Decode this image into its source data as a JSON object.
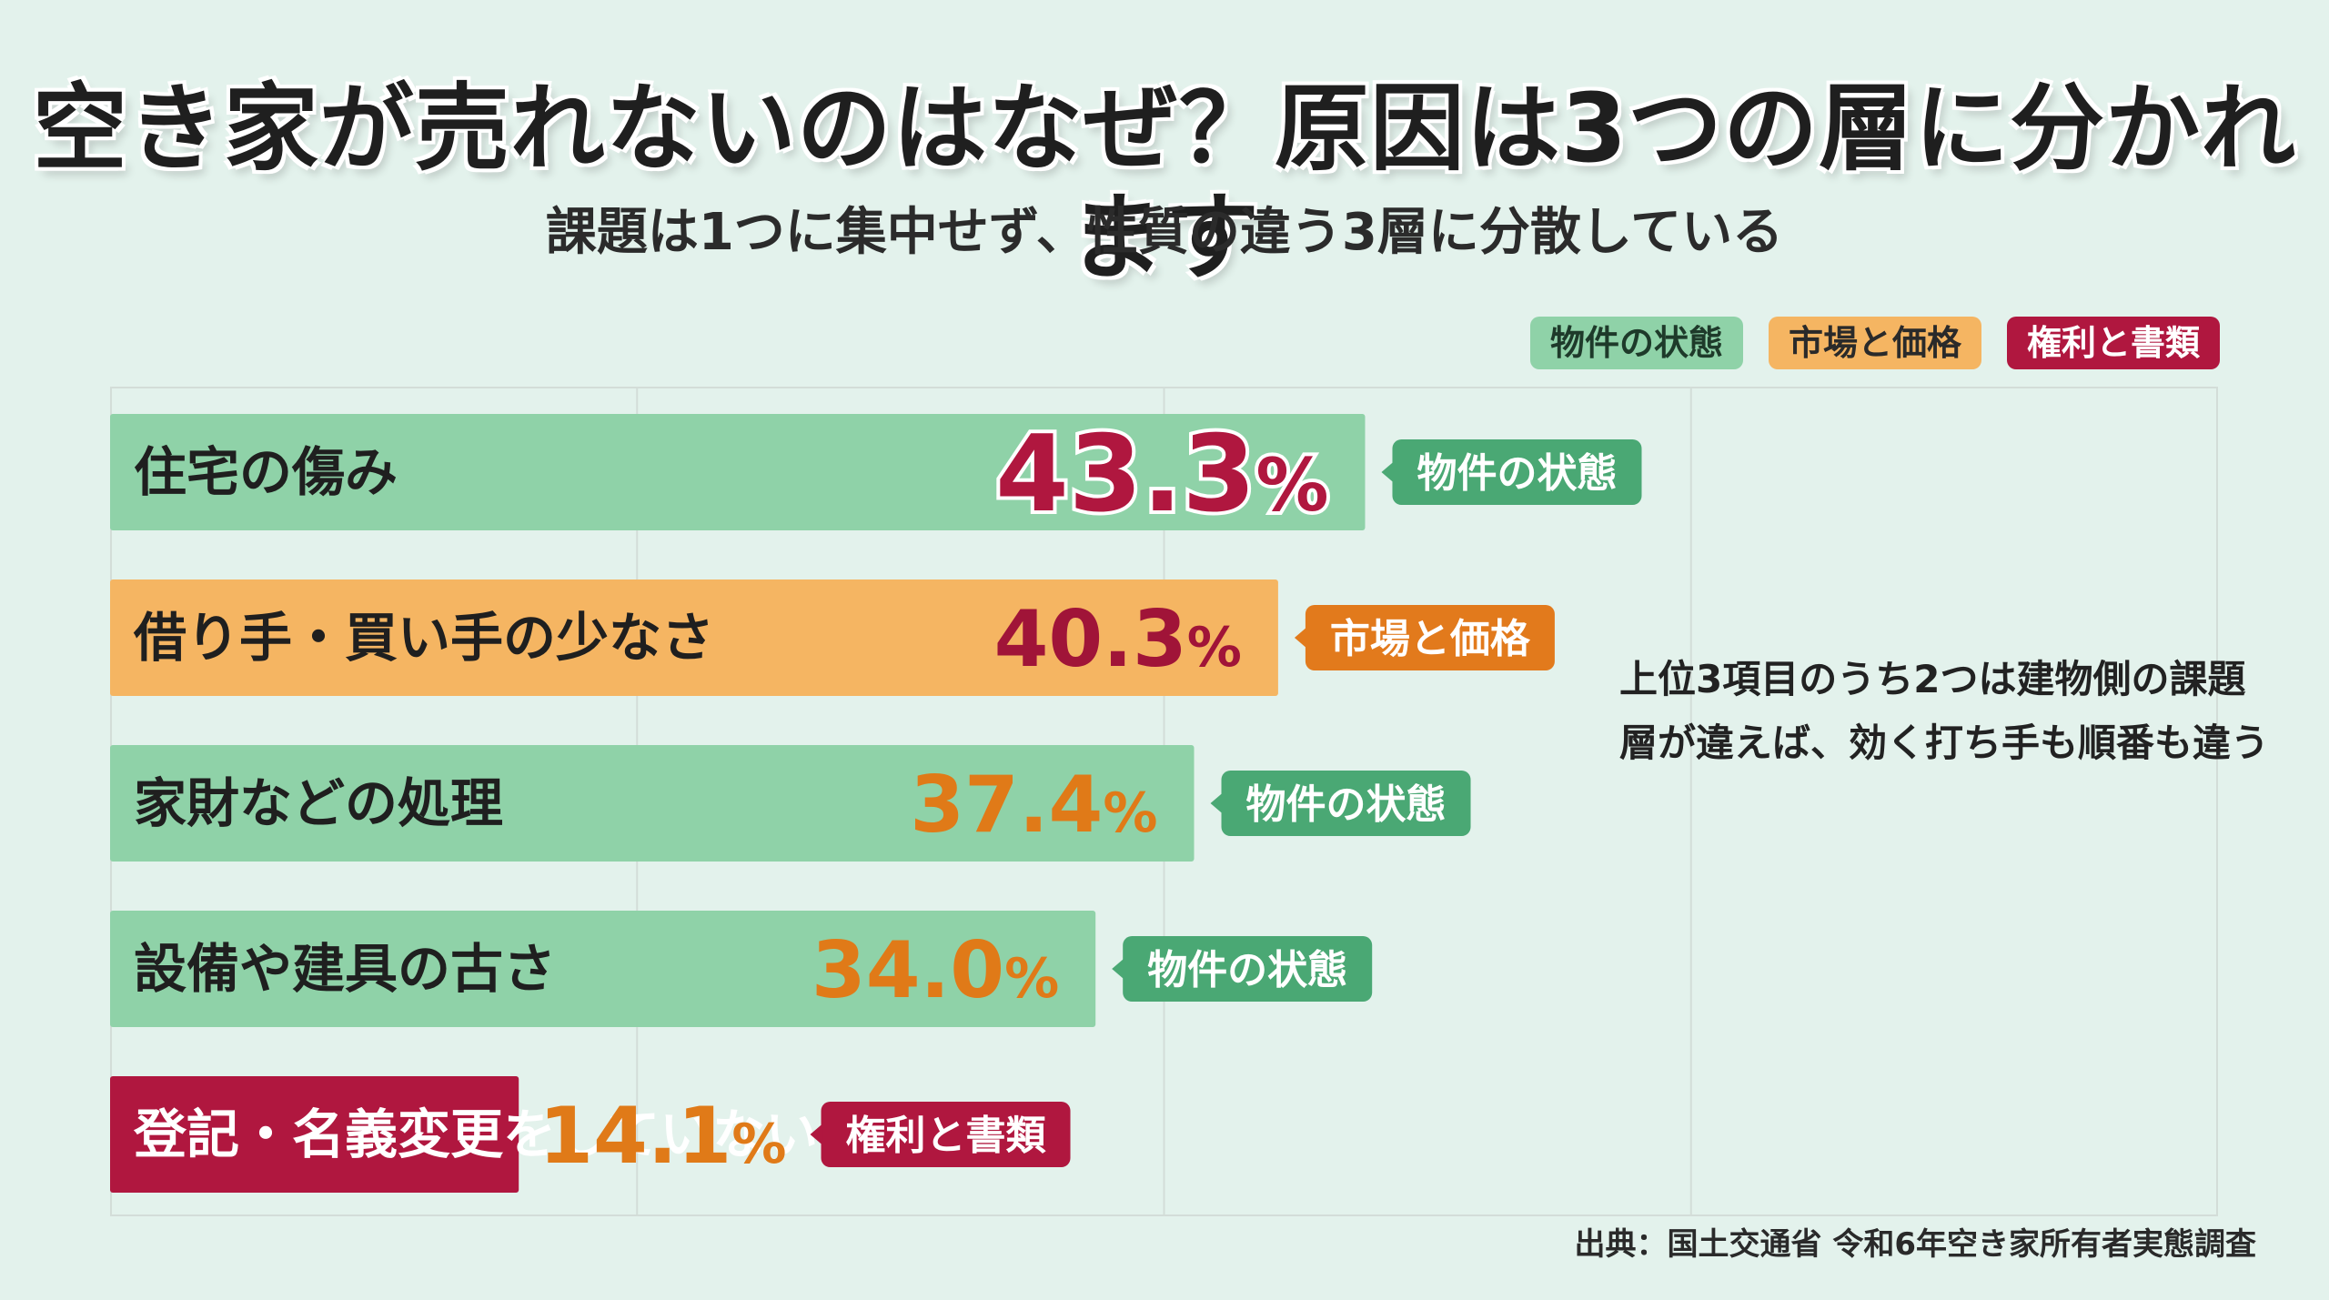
{
  "title": "空き家が売れないのはなぜ？原因は3つの層に分かれます",
  "subtitle": "課題は1つに集中せず、性質の違う3層に分散している",
  "legend": [
    {
      "label": "物件の状態",
      "color": "#8fd2a8"
    },
    {
      "label": "市場と価格",
      "color": "#f5b562"
    },
    {
      "label": "権利と書類",
      "color": "#b0173f"
    }
  ],
  "note": {
    "line1": "上位3項目のうち2つは建物側の課題",
    "line2": "層が違えば、効く打ち手も順番も違う"
  },
  "source": "出典：国土交通省 令和6年空き家所有者実態調査",
  "chart_data": {
    "type": "bar",
    "orientation": "horizontal",
    "categories": [
      "住宅の傷み",
      "借り手・買い手の少なさ",
      "家財などの処理",
      "設備や建具の古さ",
      "登記・名義変更をしていない"
    ],
    "values": [
      43.3,
      40.3,
      37.4,
      34.0,
      14.1
    ],
    "value_labels": [
      "43.3",
      "40.3",
      "37.4",
      "34.0",
      "14.1"
    ],
    "unit": "%",
    "groups": [
      "物件の状態",
      "市場と価格",
      "物件の状態",
      "物件の状態",
      "権利と書類"
    ],
    "colors": {
      "物件の状態": {
        "bar": "#8fd2a8",
        "label_text": "#1f1f1f",
        "tag_bg": "#4aa874"
      },
      "市場と価格": {
        "bar": "#f5b562",
        "label_text": "#1f1f1f",
        "tag_bg": "#e27a1c"
      },
      "権利と書類": {
        "bar": "#b0173f",
        "label_text": "#ffffff",
        "tag_bg": "#b0173f"
      }
    },
    "value_colors": [
      "#b0173f",
      "#a01438",
      "#e07a18",
      "#e07a18",
      "#e07a18"
    ],
    "xlim": [
      0,
      80
    ],
    "gridlines": [
      20,
      40,
      60,
      80
    ],
    "grid": true,
    "legend_position": "top-right"
  }
}
